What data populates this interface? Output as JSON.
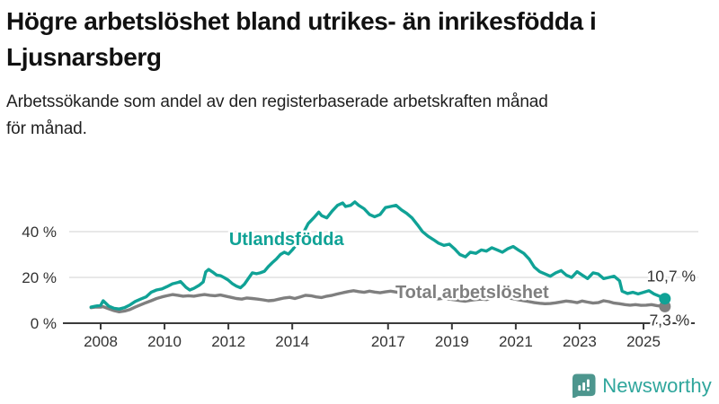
{
  "header": {
    "title_lines": [
      "Högre arbetslöshet bland utrikes- än inrikesfödda i",
      "Ljusnarsberg"
    ],
    "subtitle_lines": [
      "Arbetssökande som andel av den registerbaserade arbetskraften månad",
      "för månad."
    ]
  },
  "footer": {
    "brand": "Newsworthy",
    "brand_text_color": "#2fa69c",
    "brand_icon_color": "#4d968e"
  },
  "chart_data": {
    "type": "line",
    "unit": "%",
    "grid_color": "#dadada",
    "axis_color": "#3a3a3a",
    "x_axis": {
      "ticks": [
        2008,
        2010,
        2012,
        2014,
        2017,
        2019,
        2021,
        2023,
        2025
      ],
      "range": [
        2007.7,
        2025.9
      ]
    },
    "y_axis": {
      "tick_values": [
        0,
        20,
        40
      ],
      "tick_labels": [
        "0 %",
        "20 %",
        "40 %"
      ],
      "gridline_values": [
        20,
        40
      ],
      "range": [
        0,
        56
      ]
    },
    "series": [
      {
        "id": "utlandsfodda",
        "name": "Utlandsfödda",
        "color": "#10a296",
        "label_t": 2012.02,
        "label_v": 34.1,
        "end_label": "10,7 %",
        "end_label_offset": [
          7,
          -19
        ],
        "end_value": 10.7,
        "points": [
          [
            2007.7,
            7.0
          ],
          [
            2007.83,
            7.4
          ],
          [
            2008.0,
            7.8
          ],
          [
            2008.08,
            9.8
          ],
          [
            2008.25,
            7.5
          ],
          [
            2008.42,
            6.5
          ],
          [
            2008.58,
            6.2
          ],
          [
            2008.75,
            6.8
          ],
          [
            2008.92,
            8.0
          ],
          [
            2009.08,
            9.5
          ],
          [
            2009.25,
            10.5
          ],
          [
            2009.42,
            11.5
          ],
          [
            2009.58,
            13.5
          ],
          [
            2009.75,
            14.5
          ],
          [
            2009.92,
            15.0
          ],
          [
            2010.08,
            16.0
          ],
          [
            2010.25,
            17.2
          ],
          [
            2010.42,
            17.8
          ],
          [
            2010.5,
            18.2
          ],
          [
            2010.58,
            17.0
          ],
          [
            2010.67,
            15.7
          ],
          [
            2010.79,
            14.5
          ],
          [
            2010.92,
            15.2
          ],
          [
            2011.08,
            16.5
          ],
          [
            2011.21,
            18.0
          ],
          [
            2011.29,
            22.4
          ],
          [
            2011.38,
            23.5
          ],
          [
            2011.5,
            22.4
          ],
          [
            2011.63,
            21.0
          ],
          [
            2011.75,
            20.8
          ],
          [
            2011.88,
            19.8
          ],
          [
            2012.0,
            18.8
          ],
          [
            2012.13,
            17.2
          ],
          [
            2012.25,
            16.2
          ],
          [
            2012.38,
            15.5
          ],
          [
            2012.5,
            17.0
          ],
          [
            2012.63,
            19.6
          ],
          [
            2012.75,
            22.0
          ],
          [
            2012.88,
            21.6
          ],
          [
            2013.0,
            22.0
          ],
          [
            2013.13,
            22.7
          ],
          [
            2013.25,
            24.7
          ],
          [
            2013.38,
            26.5
          ],
          [
            2013.5,
            28.0
          ],
          [
            2013.63,
            30.0
          ],
          [
            2013.75,
            31.0
          ],
          [
            2013.88,
            30.2
          ],
          [
            2014.0,
            32.0
          ],
          [
            2014.17,
            35.0
          ],
          [
            2014.33,
            39.0
          ],
          [
            2014.5,
            43.5
          ],
          [
            2014.67,
            46.0
          ],
          [
            2014.83,
            48.5
          ],
          [
            2014.92,
            47.0
          ],
          [
            2015.08,
            46.0
          ],
          [
            2015.25,
            49.0
          ],
          [
            2015.42,
            51.5
          ],
          [
            2015.58,
            52.5
          ],
          [
            2015.67,
            51.0
          ],
          [
            2015.83,
            51.5
          ],
          [
            2015.96,
            53.0
          ],
          [
            2016.08,
            51.5
          ],
          [
            2016.25,
            50.0
          ],
          [
            2016.42,
            47.5
          ],
          [
            2016.58,
            46.5
          ],
          [
            2016.75,
            47.5
          ],
          [
            2016.92,
            50.5
          ],
          [
            2017.08,
            51.0
          ],
          [
            2017.25,
            51.5
          ],
          [
            2017.42,
            49.5
          ],
          [
            2017.58,
            48.0
          ],
          [
            2017.75,
            46.0
          ],
          [
            2017.92,
            43.0
          ],
          [
            2018.08,
            40.0
          ],
          [
            2018.25,
            38.0
          ],
          [
            2018.42,
            36.5
          ],
          [
            2018.58,
            35.0
          ],
          [
            2018.75,
            34.0
          ],
          [
            2018.92,
            34.5
          ],
          [
            2019.08,
            32.5
          ],
          [
            2019.25,
            30.0
          ],
          [
            2019.42,
            29.0
          ],
          [
            2019.58,
            31.0
          ],
          [
            2019.75,
            30.5
          ],
          [
            2019.92,
            32.0
          ],
          [
            2020.08,
            31.5
          ],
          [
            2020.25,
            33.0
          ],
          [
            2020.42,
            32.0
          ],
          [
            2020.58,
            31.0
          ],
          [
            2020.75,
            32.5
          ],
          [
            2020.92,
            33.5
          ],
          [
            2021.08,
            32.0
          ],
          [
            2021.25,
            30.5
          ],
          [
            2021.42,
            28.0
          ],
          [
            2021.58,
            24.5
          ],
          [
            2021.75,
            22.5
          ],
          [
            2021.92,
            21.5
          ],
          [
            2022.08,
            20.5
          ],
          [
            2022.25,
            22.0
          ],
          [
            2022.42,
            23.0
          ],
          [
            2022.58,
            21.0
          ],
          [
            2022.75,
            20.0
          ],
          [
            2022.92,
            22.5
          ],
          [
            2023.08,
            21.0
          ],
          [
            2023.25,
            19.5
          ],
          [
            2023.42,
            22.0
          ],
          [
            2023.58,
            21.5
          ],
          [
            2023.75,
            19.5
          ],
          [
            2023.92,
            20.0
          ],
          [
            2024.08,
            20.5
          ],
          [
            2024.25,
            18.5
          ],
          [
            2024.33,
            14.0
          ],
          [
            2024.5,
            13.0
          ],
          [
            2024.67,
            13.5
          ],
          [
            2024.83,
            12.8
          ],
          [
            2025.0,
            13.5
          ],
          [
            2025.17,
            14.2
          ],
          [
            2025.33,
            12.8
          ],
          [
            2025.5,
            11.8
          ],
          [
            2025.67,
            10.7
          ]
        ]
      },
      {
        "id": "total",
        "name": "Total arbetslöshet",
        "color": "#7f7f7f",
        "label_t": 2017.23,
        "label_v": 11.0,
        "end_label": "7,3 %",
        "end_label_offset": [
          5,
          21
        ],
        "end_value": 7.3,
        "points": [
          [
            2007.7,
            6.8
          ],
          [
            2007.83,
            7.0
          ],
          [
            2008.0,
            7.0
          ],
          [
            2008.08,
            7.2
          ],
          [
            2008.25,
            6.3
          ],
          [
            2008.42,
            5.5
          ],
          [
            2008.58,
            5.0
          ],
          [
            2008.75,
            5.3
          ],
          [
            2008.92,
            6.0
          ],
          [
            2009.08,
            7.0
          ],
          [
            2009.25,
            8.0
          ],
          [
            2009.42,
            9.0
          ],
          [
            2009.58,
            9.8
          ],
          [
            2009.75,
            10.8
          ],
          [
            2009.92,
            11.5
          ],
          [
            2010.08,
            12.0
          ],
          [
            2010.25,
            12.5
          ],
          [
            2010.42,
            12.2
          ],
          [
            2010.58,
            11.8
          ],
          [
            2010.75,
            12.0
          ],
          [
            2010.92,
            11.8
          ],
          [
            2011.08,
            12.2
          ],
          [
            2011.25,
            12.5
          ],
          [
            2011.42,
            12.2
          ],
          [
            2011.58,
            12.0
          ],
          [
            2011.75,
            12.3
          ],
          [
            2011.92,
            11.8
          ],
          [
            2012.08,
            11.3
          ],
          [
            2012.25,
            10.8
          ],
          [
            2012.42,
            10.5
          ],
          [
            2012.58,
            11.0
          ],
          [
            2012.75,
            10.8
          ],
          [
            2012.92,
            10.5
          ],
          [
            2013.08,
            10.2
          ],
          [
            2013.25,
            9.8
          ],
          [
            2013.42,
            10.0
          ],
          [
            2013.58,
            10.5
          ],
          [
            2013.75,
            11.0
          ],
          [
            2013.92,
            11.3
          ],
          [
            2014.08,
            10.8
          ],
          [
            2014.25,
            11.5
          ],
          [
            2014.42,
            12.2
          ],
          [
            2014.58,
            12.0
          ],
          [
            2014.75,
            11.5
          ],
          [
            2014.92,
            11.2
          ],
          [
            2015.08,
            11.8
          ],
          [
            2015.25,
            12.2
          ],
          [
            2015.42,
            12.8
          ],
          [
            2015.58,
            13.3
          ],
          [
            2015.75,
            13.8
          ],
          [
            2015.92,
            14.2
          ],
          [
            2016.08,
            13.8
          ],
          [
            2016.25,
            13.5
          ],
          [
            2016.42,
            14.0
          ],
          [
            2016.58,
            13.6
          ],
          [
            2016.75,
            13.3
          ],
          [
            2016.92,
            13.7
          ],
          [
            2017.08,
            14.0
          ],
          [
            2017.25,
            13.6
          ],
          [
            2017.42,
            13.2
          ],
          [
            2017.58,
            13.0
          ],
          [
            2017.75,
            12.6
          ],
          [
            2017.92,
            12.2
          ],
          [
            2018.08,
            11.6
          ],
          [
            2018.25,
            11.2
          ],
          [
            2018.42,
            11.0
          ],
          [
            2018.58,
            10.6
          ],
          [
            2018.75,
            10.9
          ],
          [
            2018.92,
            10.5
          ],
          [
            2019.08,
            10.2
          ],
          [
            2019.25,
            9.9
          ],
          [
            2019.42,
            9.6
          ],
          [
            2019.58,
            10.0
          ],
          [
            2019.75,
            10.3
          ],
          [
            2019.92,
            10.5
          ],
          [
            2020.08,
            10.3
          ],
          [
            2020.25,
            11.0
          ],
          [
            2020.42,
            11.4
          ],
          [
            2020.58,
            11.2
          ],
          [
            2020.75,
            11.0
          ],
          [
            2020.92,
            10.7
          ],
          [
            2021.08,
            10.2
          ],
          [
            2021.25,
            9.8
          ],
          [
            2021.42,
            9.4
          ],
          [
            2021.58,
            9.0
          ],
          [
            2021.75,
            8.7
          ],
          [
            2021.92,
            8.5
          ],
          [
            2022.08,
            8.6
          ],
          [
            2022.25,
            8.9
          ],
          [
            2022.42,
            9.3
          ],
          [
            2022.58,
            9.7
          ],
          [
            2022.75,
            9.4
          ],
          [
            2022.92,
            9.0
          ],
          [
            2023.08,
            9.7
          ],
          [
            2023.25,
            9.2
          ],
          [
            2023.42,
            8.8
          ],
          [
            2023.58,
            9.0
          ],
          [
            2023.75,
            9.8
          ],
          [
            2023.92,
            9.4
          ],
          [
            2024.08,
            8.8
          ],
          [
            2024.25,
            8.5
          ],
          [
            2024.42,
            8.1
          ],
          [
            2024.58,
            7.9
          ],
          [
            2024.75,
            8.1
          ],
          [
            2024.92,
            7.8
          ],
          [
            2025.08,
            7.9
          ],
          [
            2025.25,
            8.1
          ],
          [
            2025.42,
            7.7
          ],
          [
            2025.55,
            7.5
          ],
          [
            2025.67,
            7.3
          ]
        ]
      }
    ]
  }
}
